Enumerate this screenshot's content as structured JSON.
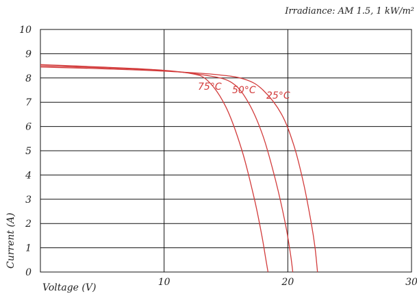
{
  "chart_data": {
    "type": "line",
    "annotation": "Irradiance: AM 1.5, 1 kW/m²",
    "xlabel": "Voltage (V)",
    "ylabel": "Current (A)",
    "xlim": [
      0,
      30
    ],
    "ylim": [
      0,
      10
    ],
    "x_ticks": [
      "10",
      "20",
      "30"
    ],
    "y_ticks": [
      "0",
      "1",
      "2",
      "3",
      "4",
      "5",
      "6",
      "7",
      "8",
      "9",
      "10"
    ],
    "grid": true,
    "line_color": "#d23b3b",
    "series": [
      {
        "name": "25°C",
        "points": [
          [
            0,
            8.45
          ],
          [
            5,
            8.38
          ],
          [
            10,
            8.28
          ],
          [
            14,
            8.15
          ],
          [
            16.5,
            7.95
          ],
          [
            18,
            7.5
          ],
          [
            19.5,
            6.5
          ],
          [
            20.5,
            5.2
          ],
          [
            21.3,
            3.6
          ],
          [
            21.9,
            2.0
          ],
          [
            22.2,
            1.0
          ],
          [
            22.4,
            0
          ]
        ]
      },
      {
        "name": "50°C",
        "points": [
          [
            0,
            8.5
          ],
          [
            5,
            8.42
          ],
          [
            10,
            8.3
          ],
          [
            13.5,
            8.1
          ],
          [
            15.5,
            7.8
          ],
          [
            16.8,
            7.0
          ],
          [
            18,
            5.6
          ],
          [
            19,
            3.8
          ],
          [
            19.8,
            2.0
          ],
          [
            20.2,
            0.8
          ],
          [
            20.4,
            0
          ]
        ]
      },
      {
        "name": "75°C",
        "points": [
          [
            0,
            8.55
          ],
          [
            5,
            8.45
          ],
          [
            9,
            8.35
          ],
          [
            12,
            8.2
          ],
          [
            13.5,
            7.9
          ],
          [
            15,
            6.8
          ],
          [
            16.3,
            5.0
          ],
          [
            17.3,
            3.0
          ],
          [
            17.9,
            1.5
          ],
          [
            18.2,
            0.6
          ],
          [
            18.4,
            0
          ]
        ]
      }
    ]
  }
}
